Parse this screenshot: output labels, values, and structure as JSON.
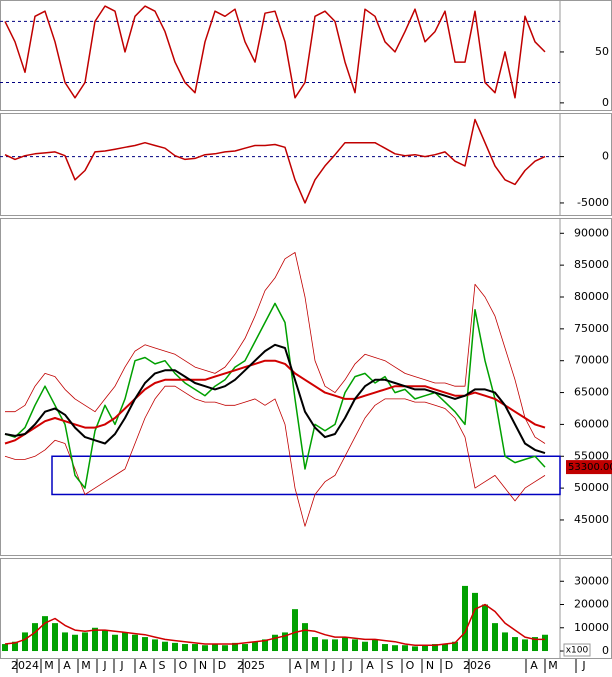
{
  "chart_data": [
    {
      "type": "line",
      "xlim": [
        -0.5,
        55.5
      ],
      "ylim": [
        -7,
        101
      ],
      "yticks": [
        0,
        50
      ],
      "levels": [
        20,
        80
      ],
      "series": [
        {
          "color": "#c00000",
          "values": [
            80,
            60,
            30,
            85,
            90,
            60,
            20,
            5,
            20,
            80,
            95,
            90,
            50,
            85,
            95,
            90,
            70,
            40,
            20,
            10,
            60,
            90,
            85,
            92,
            60,
            40,
            88,
            90,
            60,
            5,
            20,
            85,
            90,
            80,
            40,
            10,
            92,
            85,
            60,
            50,
            70,
            92,
            60,
            70,
            90,
            40,
            40,
            90,
            20,
            10,
            50,
            5,
            85,
            60,
            50
          ]
        }
      ]
    },
    {
      "type": "line",
      "xlim": [
        -0.5,
        55.5
      ],
      "ylim": [
        -6300,
        4700
      ],
      "yticks": [
        -5000,
        0
      ],
      "levels": [
        0
      ],
      "series": [
        {
          "color": "#c00000",
          "values": [
            200,
            -300,
            100,
            300,
            400,
            500,
            100,
            -2500,
            -1500,
            500,
            600,
            800,
            1000,
            1200,
            1500,
            1200,
            900,
            100,
            -300,
            -200,
            200,
            300,
            500,
            600,
            900,
            1200,
            1200,
            1300,
            1000,
            -2500,
            -5000,
            -2500,
            -1000,
            200,
            1500,
            1500,
            1500,
            1500,
            900,
            300,
            100,
            200,
            0,
            200,
            500,
            -500,
            -1000,
            4000,
            1500,
            -1000,
            -2500,
            -3000,
            -1500,
            -500,
            0
          ]
        }
      ]
    },
    {
      "type": "line",
      "xlim": [
        -0.5,
        55.5
      ],
      "ylim": [
        39500,
        92400
      ],
      "yticks": [
        45000,
        50000,
        55000,
        60000,
        65000,
        70000,
        75000,
        80000,
        85000,
        90000
      ],
      "support_zone": {
        "start": 4.7,
        "end": 55.5,
        "low": 49000,
        "high": 55000,
        "color": "#0000c0"
      },
      "last_price": {
        "value": 53300,
        "label": "53300.00",
        "color": "#c00000"
      },
      "series": [
        {
          "color": "#c00000",
          "width": 0.8,
          "values": [
            62000,
            62000,
            63000,
            66000,
            68000,
            67500,
            65500,
            64000,
            63000,
            62000,
            64000,
            66000,
            69000,
            71500,
            72500,
            72000,
            71500,
            71000,
            70000,
            69000,
            68500,
            68000,
            69000,
            71000,
            73500,
            77000,
            81000,
            83000,
            86000,
            87000,
            80000,
            70000,
            66000,
            65000,
            67000,
            69500,
            71000,
            70500,
            70000,
            69000,
            68000,
            67500,
            67000,
            66500,
            66500,
            66000,
            66000,
            82000,
            80000,
            77000,
            72000,
            67000,
            61000,
            58000,
            57000
          ]
        },
        {
          "color": "#c00000",
          "width": 0.8,
          "values": [
            55000,
            54500,
            54500,
            55000,
            56000,
            57500,
            57000,
            53000,
            49000,
            50000,
            51000,
            52000,
            53000,
            57000,
            61000,
            64000,
            66000,
            66000,
            65000,
            64000,
            63500,
            63500,
            63000,
            63000,
            63500,
            64000,
            63000,
            64000,
            60000,
            50000,
            44000,
            49000,
            51000,
            52000,
            55000,
            58000,
            61000,
            63000,
            64000,
            64000,
            64000,
            63500,
            63500,
            63000,
            62500,
            61000,
            58000,
            50000,
            51000,
            52000,
            50000,
            48000,
            50000,
            51000,
            52000
          ]
        },
        {
          "color": "#00a000",
          "width": 1.5,
          "values": [
            58500,
            58000,
            59500,
            63000,
            66000,
            63000,
            60000,
            52000,
            50000,
            59000,
            63000,
            60000,
            64000,
            70000,
            70500,
            69500,
            70000,
            68000,
            66500,
            65500,
            64500,
            66000,
            67000,
            69000,
            70000,
            73000,
            76000,
            79000,
            76000,
            64000,
            53000,
            60000,
            59000,
            60000,
            65000,
            67500,
            68000,
            66500,
            67500,
            65000,
            65500,
            64000,
            64500,
            65000,
            63500,
            62000,
            60000,
            78000,
            70000,
            64000,
            55000,
            54000,
            54500,
            55000,
            53300
          ]
        },
        {
          "color": "#d00000",
          "width": 2,
          "values": [
            57000,
            57500,
            58500,
            59500,
            60500,
            61000,
            60500,
            60000,
            59500,
            59500,
            60000,
            61000,
            62500,
            64000,
            65500,
            66500,
            67000,
            67000,
            67000,
            67000,
            67000,
            67500,
            68000,
            68500,
            69000,
            69500,
            70000,
            70000,
            69500,
            68000,
            67000,
            66000,
            65000,
            64500,
            64000,
            64000,
            64500,
            65000,
            65500,
            66000,
            66000,
            66000,
            66000,
            65500,
            65000,
            64500,
            64500,
            65000,
            64500,
            64000,
            63000,
            62000,
            61000,
            60000,
            59500
          ]
        },
        {
          "color": "#000000",
          "width": 2,
          "values": [
            58500,
            58200,
            58500,
            60000,
            62000,
            62500,
            61500,
            59500,
            58000,
            57500,
            57000,
            58500,
            61000,
            64000,
            66500,
            68000,
            68500,
            68500,
            67500,
            66500,
            66000,
            65500,
            66000,
            67000,
            68500,
            70000,
            71500,
            72500,
            72000,
            67000,
            62000,
            59500,
            58000,
            58500,
            61000,
            64000,
            66000,
            67000,
            67000,
            66500,
            66000,
            65500,
            65500,
            65000,
            64500,
            64000,
            64500,
            65500,
            65500,
            65000,
            63000,
            60000,
            57000,
            56000,
            55500
          ]
        }
      ]
    },
    {
      "type": "bar",
      "xlim": [
        -0.5,
        55.5
      ],
      "ylim": [
        -3000,
        40000
      ],
      "yticks": [
        0,
        10000,
        20000,
        30000
      ],
      "unit_label": "x100",
      "xticks": [
        {
          "value": 2,
          "label": "2024"
        },
        {
          "value": 4.4,
          "label": "M"
        },
        {
          "value": 6.2,
          "label": "A"
        },
        {
          "value": 8.1,
          "label": "M"
        },
        {
          "value": 10,
          "label": "J"
        },
        {
          "value": 11.7,
          "label": "J"
        },
        {
          "value": 13.8,
          "label": "A"
        },
        {
          "value": 15.7,
          "label": "S"
        },
        {
          "value": 17.8,
          "label": "O"
        },
        {
          "value": 19.8,
          "label": "N"
        },
        {
          "value": 21.7,
          "label": "D"
        },
        {
          "value": 24.6,
          "label": "2025"
        },
        {
          "value": 29.3,
          "label": "A"
        },
        {
          "value": 31,
          "label": "M"
        },
        {
          "value": 32.9,
          "label": "J"
        },
        {
          "value": 34.6,
          "label": "J"
        },
        {
          "value": 36.5,
          "label": "A"
        },
        {
          "value": 38.5,
          "label": "S"
        },
        {
          "value": 40.5,
          "label": "O"
        },
        {
          "value": 42.5,
          "label": "N"
        },
        {
          "value": 44.4,
          "label": "D"
        },
        {
          "value": 47.2,
          "label": "2026"
        },
        {
          "value": 52.9,
          "label": "A"
        },
        {
          "value": 54.8,
          "label": "M"
        },
        {
          "value": 57.9,
          "label": "J"
        }
      ],
      "series": [
        {
          "type": "bar",
          "color": "#00a000",
          "values": [
            3000,
            4000,
            8000,
            12000,
            15000,
            12000,
            8000,
            7000,
            8000,
            10000,
            9000,
            7000,
            8000,
            7000,
            6000,
            5000,
            4000,
            3500,
            3000,
            3000,
            2500,
            3000,
            2500,
            3500,
            3000,
            4000,
            5000,
            7000,
            8000,
            18000,
            12000,
            6000,
            5000,
            5000,
            6000,
            5000,
            4000,
            5000,
            3000,
            2500,
            2500,
            2000,
            2500,
            3000,
            3000,
            4000,
            28000,
            25000,
            20000,
            12000,
            8000,
            6000,
            5000,
            6000,
            7000
          ]
        },
        {
          "type": "line",
          "color": "#d00000",
          "values": [
            3000,
            3500,
            5000,
            8000,
            12000,
            14000,
            11000,
            9000,
            8500,
            9000,
            9000,
            8500,
            8000,
            7500,
            7000,
            6000,
            5000,
            4500,
            4000,
            3500,
            3000,
            3000,
            3000,
            3000,
            3500,
            4000,
            4500,
            5500,
            6500,
            8000,
            9000,
            8500,
            7000,
            6000,
            6000,
            5500,
            5000,
            5000,
            4500,
            4000,
            3000,
            2500,
            2500,
            2500,
            3000,
            3500,
            8000,
            18000,
            20000,
            17000,
            12000,
            9000,
            6000,
            5000,
            5000
          ]
        }
      ]
    }
  ]
}
